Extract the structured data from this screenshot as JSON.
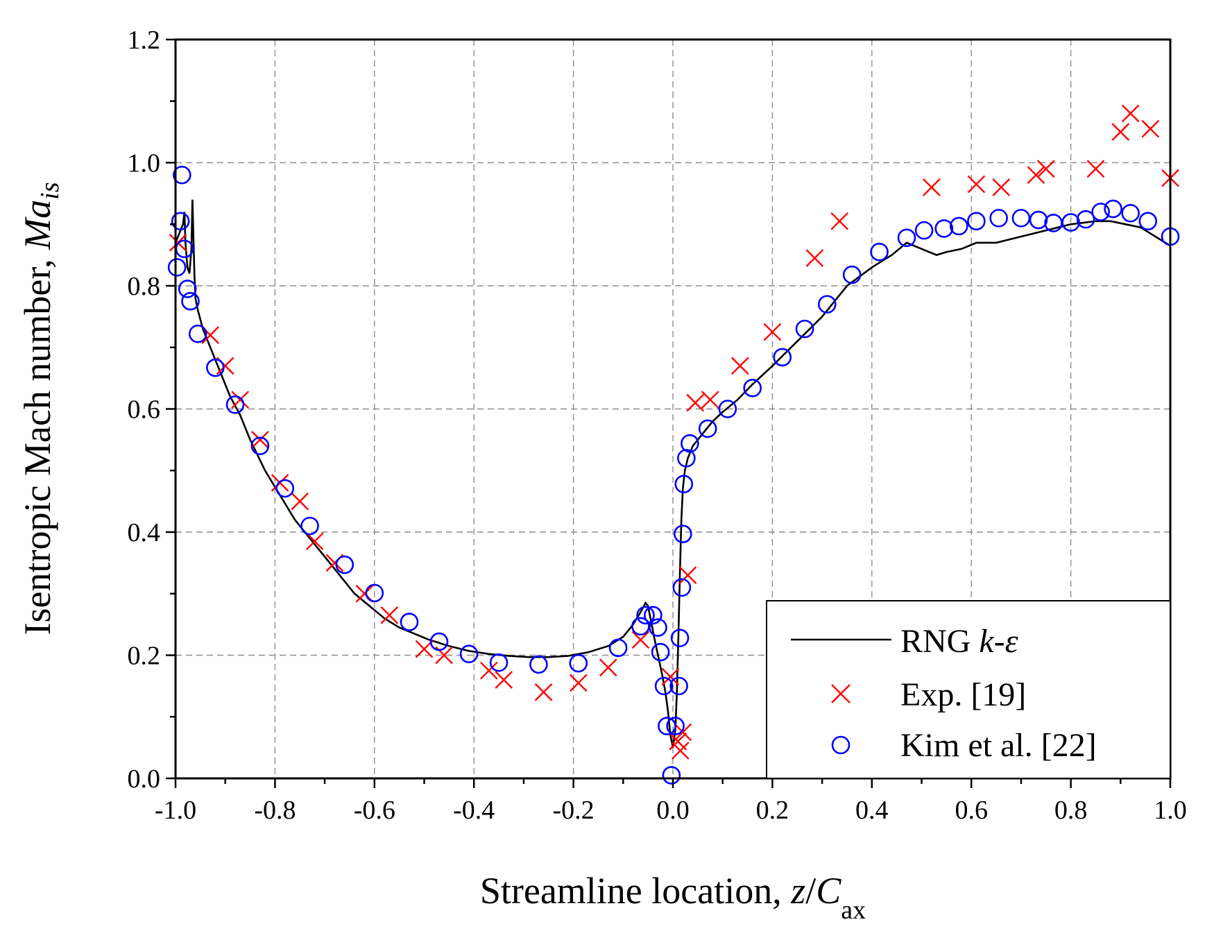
{
  "chart_data": {
    "type": "line",
    "xlabel": {
      "prefix": "Streamline location, ",
      "var": "z",
      "slash": "/",
      "var2": "C",
      "sub": "ax"
    },
    "ylabel": {
      "prefix": "Isentropic Mach number, ",
      "var": "Ma",
      "sub": "is"
    },
    "xlim": [
      -1.0,
      1.0
    ],
    "ylim": [
      0.0,
      1.2
    ],
    "xticks": [
      -1.0,
      -0.8,
      -0.6,
      -0.4,
      -0.2,
      0.0,
      0.2,
      0.4,
      0.6,
      0.8,
      1.0
    ],
    "xtick_labels": [
      "-1.0",
      "-0.8",
      "-0.6",
      "-0.4",
      "-0.2",
      "0.0",
      "0.2",
      "0.4",
      "0.6",
      "0.8",
      "1.0"
    ],
    "yticks": [
      0.0,
      0.2,
      0.4,
      0.6,
      0.8,
      1.0,
      1.2
    ],
    "ytick_labels": [
      "0.0",
      "0.2",
      "0.4",
      "0.6",
      "0.8",
      "1.0",
      "1.2"
    ],
    "grid": true,
    "legend_position": "bottom-right",
    "series": [
      {
        "name": "RNG k-ε",
        "legend": {
          "base": "RNG ",
          "italic": "k-ε"
        },
        "style": "line",
        "color": "#000000",
        "x": [
          -1.0,
          -0.985,
          -0.982,
          -0.98,
          -0.976,
          -0.972,
          -0.968,
          -0.966,
          -0.962,
          -0.96,
          -0.955,
          -0.945,
          -0.93,
          -0.91,
          -0.89,
          -0.87,
          -0.85,
          -0.82,
          -0.79,
          -0.76,
          -0.73,
          -0.7,
          -0.67,
          -0.64,
          -0.61,
          -0.58,
          -0.55,
          -0.52,
          -0.49,
          -0.45,
          -0.41,
          -0.37,
          -0.33,
          -0.29,
          -0.25,
          -0.21,
          -0.17,
          -0.13,
          -0.1,
          -0.08,
          -0.065,
          -0.055,
          -0.05,
          -0.045,
          -0.038,
          -0.03,
          -0.022,
          -0.015,
          -0.01,
          -0.005,
          0.0,
          0.005,
          0.008,
          0.011,
          0.014,
          0.017,
          0.02,
          0.024,
          0.03,
          0.04,
          0.06,
          0.08,
          0.1,
          0.13,
          0.16,
          0.2,
          0.25,
          0.3,
          0.35,
          0.4,
          0.44,
          0.47,
          0.5,
          0.53,
          0.55,
          0.58,
          0.61,
          0.65,
          0.7,
          0.75,
          0.8,
          0.85,
          0.88,
          0.91,
          0.94,
          0.97,
          1.0
        ],
        "y": [
          0.87,
          0.9,
          0.92,
          0.87,
          0.83,
          0.82,
          0.86,
          0.94,
          0.82,
          0.78,
          0.76,
          0.73,
          0.7,
          0.66,
          0.62,
          0.59,
          0.55,
          0.5,
          0.46,
          0.42,
          0.39,
          0.36,
          0.33,
          0.3,
          0.28,
          0.26,
          0.245,
          0.235,
          0.225,
          0.215,
          0.207,
          0.202,
          0.199,
          0.197,
          0.197,
          0.199,
          0.205,
          0.215,
          0.23,
          0.25,
          0.27,
          0.285,
          0.28,
          0.26,
          0.23,
          0.2,
          0.17,
          0.14,
          0.11,
          0.07,
          0.05,
          0.08,
          0.14,
          0.23,
          0.33,
          0.42,
          0.47,
          0.5,
          0.52,
          0.54,
          0.56,
          0.58,
          0.595,
          0.615,
          0.64,
          0.67,
          0.71,
          0.75,
          0.8,
          0.83,
          0.85,
          0.87,
          0.86,
          0.85,
          0.855,
          0.86,
          0.87,
          0.87,
          0.88,
          0.89,
          0.9,
          0.905,
          0.905,
          0.9,
          0.895,
          0.88,
          0.865
        ]
      },
      {
        "name": "Exp. [19]",
        "legend": {
          "base": "Exp. [19]",
          "italic": ""
        },
        "style": "cross",
        "color": "#ff0000",
        "x": [
          -0.995,
          -0.93,
          -0.9,
          -0.87,
          -0.83,
          -0.79,
          -0.75,
          -0.72,
          -0.68,
          -0.62,
          -0.57,
          -0.5,
          -0.46,
          -0.37,
          -0.34,
          -0.26,
          -0.19,
          -0.13,
          -0.065,
          -0.005,
          0.01,
          0.015,
          0.02,
          0.03,
          0.045,
          0.075,
          0.135,
          0.2,
          0.285,
          0.335,
          0.52,
          0.61,
          0.66,
          0.73,
          0.75,
          0.85,
          0.9,
          0.92,
          0.96,
          1.0
        ],
        "y": [
          0.87,
          0.72,
          0.67,
          0.615,
          0.55,
          0.48,
          0.45,
          0.385,
          0.35,
          0.3,
          0.265,
          0.21,
          0.2,
          0.175,
          0.16,
          0.14,
          0.155,
          0.18,
          0.225,
          0.165,
          0.06,
          0.045,
          0.075,
          0.33,
          0.61,
          0.615,
          0.67,
          0.725,
          0.845,
          0.905,
          0.96,
          0.965,
          0.96,
          0.98,
          0.99,
          0.99,
          1.05,
          1.08,
          1.055,
          0.975
        ]
      },
      {
        "name": "Kim et al. [22]",
        "legend": {
          "base": "Kim et al. [22]",
          "italic": ""
        },
        "style": "circle",
        "color": "#0000ff",
        "x": [
          -0.997,
          -0.99,
          -0.987,
          -0.982,
          -0.976,
          -0.97,
          -0.955,
          -0.92,
          -0.88,
          -0.83,
          -0.78,
          -0.73,
          -0.66,
          -0.6,
          -0.53,
          -0.47,
          -0.41,
          -0.35,
          -0.27,
          -0.19,
          -0.11,
          -0.065,
          -0.055,
          -0.04,
          -0.03,
          -0.025,
          -0.018,
          -0.012,
          -0.003,
          0.005,
          0.012,
          0.014,
          0.018,
          0.02,
          0.022,
          0.027,
          0.034,
          0.07,
          0.11,
          0.16,
          0.22,
          0.265,
          0.31,
          0.36,
          0.415,
          0.47,
          0.505,
          0.545,
          0.575,
          0.61,
          0.655,
          0.7,
          0.735,
          0.765,
          0.8,
          0.83,
          0.86,
          0.885,
          0.92,
          0.955,
          1.0
        ],
        "y": [
          0.83,
          0.905,
          0.98,
          0.86,
          0.795,
          0.775,
          0.722,
          0.667,
          0.607,
          0.54,
          0.471,
          0.41,
          0.347,
          0.301,
          0.254,
          0.222,
          0.202,
          0.188,
          0.185,
          0.187,
          0.212,
          0.247,
          0.265,
          0.265,
          0.245,
          0.205,
          0.15,
          0.085,
          0.005,
          0.085,
          0.15,
          0.228,
          0.31,
          0.397,
          0.478,
          0.52,
          0.544,
          0.568,
          0.6,
          0.634,
          0.684,
          0.73,
          0.77,
          0.818,
          0.855,
          0.878,
          0.89,
          0.893,
          0.897,
          0.905,
          0.91,
          0.91,
          0.907,
          0.902,
          0.903,
          0.908,
          0.92,
          0.925,
          0.918,
          0.905,
          0.88
        ]
      }
    ]
  }
}
